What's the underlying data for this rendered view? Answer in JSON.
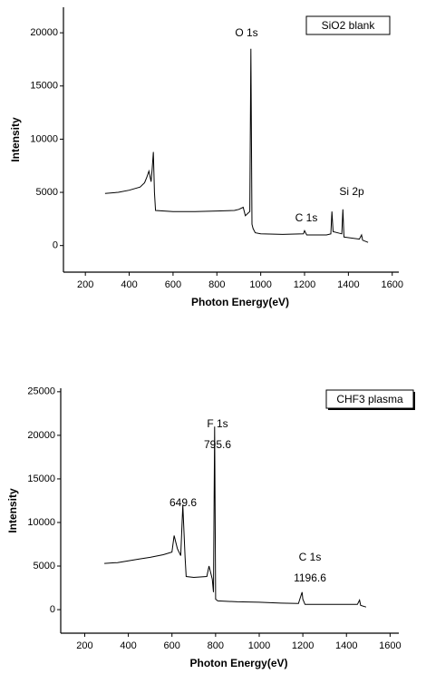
{
  "chart_data": [
    {
      "type": "line",
      "legend_text": "SiO2 blank",
      "xlabel": "Photon Energy(eV)",
      "ylabel": "Intensity",
      "annotations": [
        "O 1s",
        "C 1s",
        "Si 2p"
      ],
      "x": [
        290,
        350,
        400,
        450,
        470,
        480,
        490,
        500,
        505,
        510,
        515,
        520,
        600,
        700,
        800,
        880,
        900,
        920,
        930,
        940,
        950,
        955,
        960,
        965,
        975,
        1000,
        1100,
        1195,
        1200,
        1210,
        1300,
        1320,
        1325,
        1330,
        1370,
        1375,
        1380,
        1450,
        1460,
        1465,
        1490
      ],
      "values": [
        4900,
        5000,
        5200,
        5500,
        5900,
        6400,
        7000,
        6000,
        7200,
        8800,
        5000,
        3300,
        3200,
        3200,
        3250,
        3300,
        3400,
        3600,
        2800,
        3000,
        3200,
        18500,
        2000,
        1600,
        1200,
        1100,
        1050,
        1100,
        1400,
        1000,
        1000,
        1100,
        3200,
        1300,
        1100,
        3400,
        800,
        600,
        1000,
        500,
        300
      ],
      "xlim": [
        100,
        1630
      ],
      "ylim": [
        -2500,
        22400
      ],
      "xticks": [
        200,
        400,
        600,
        800,
        1000,
        1200,
        1400,
        1600
      ],
      "yticks": [
        0,
        5000,
        10000,
        15000,
        20000
      ],
      "color": "#000000"
    },
    {
      "type": "line",
      "legend_text": "CHF3 plasma",
      "xlabel": "Photon Energy(eV)",
      "ylabel": "Intensity",
      "annotations": [
        "F 1s",
        "795.6",
        "649.6",
        "C 1s",
        "1196.6"
      ],
      "x": [
        290,
        350,
        400,
        450,
        500,
        560,
        600,
        610,
        625,
        640,
        649.6,
        660,
        665,
        700,
        760,
        770,
        785,
        790,
        795.6,
        800,
        810,
        900,
        1000,
        1100,
        1180,
        1190,
        1196.6,
        1200,
        1210,
        1300,
        1450,
        1460,
        1465,
        1490
      ],
      "values": [
        5300,
        5400,
        5600,
        5800,
        6000,
        6300,
        6600,
        8500,
        7000,
        6200,
        12000,
        6000,
        3800,
        3700,
        3800,
        5000,
        3500,
        2000,
        21000,
        1200,
        1000,
        900,
        850,
        750,
        700,
        1500,
        2000,
        1200,
        600,
        600,
        600,
        1100,
        500,
        300
      ],
      "xlim": [
        90,
        1640
      ],
      "ylim": [
        -2700,
        25400
      ],
      "xticks": [
        200,
        400,
        600,
        800,
        1000,
        1200,
        1400,
        1600
      ],
      "yticks": [
        0,
        5000,
        10000,
        15000,
        20000,
        25000
      ],
      "color": "#000000"
    }
  ]
}
